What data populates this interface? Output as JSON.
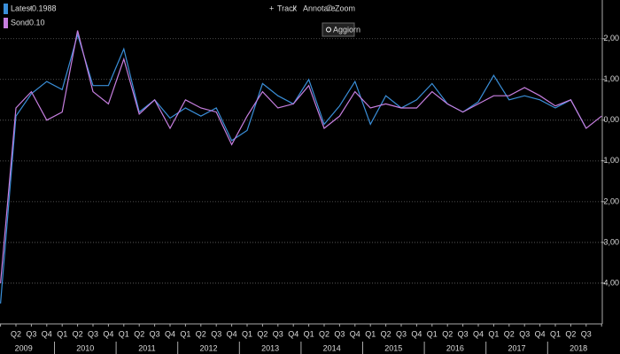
{
  "toolbar": {
    "items": [
      "Track",
      "Annotare",
      "Zoom"
    ],
    "button": "Aggiorn"
  },
  "chart_data": {
    "type": "line",
    "categories": [
      null,
      "Q2",
      "Q3",
      "Q4",
      "Q1",
      "Q2",
      "Q3",
      "Q4",
      "Q1",
      "Q2",
      "Q3",
      "Q4",
      "Q1",
      "Q2",
      "Q3",
      "Q4",
      "Q1",
      "Q2",
      "Q3",
      "Q4",
      "Q1",
      "Q2",
      "Q3",
      "Q4",
      "Q1",
      "Q2",
      "Q3",
      "Q4",
      "Q1",
      "Q2",
      "Q3",
      "Q4",
      "Q1",
      "Q2",
      "Q3",
      "Q4",
      "Q1",
      "Q2",
      "Q3",
      null
    ],
    "years": [
      "2009",
      "2010",
      "2011",
      "2012",
      "2013",
      "2014",
      "2015",
      "2016",
      "2017",
      "2018"
    ],
    "series": [
      {
        "name": "Latest",
        "legend_value": "-0.1988",
        "color": "#3a8fd9",
        "values": [
          -4.5,
          0.1,
          0.65,
          0.95,
          0.75,
          2.1,
          0.85,
          0.85,
          1.75,
          0.2,
          0.5,
          0.05,
          0.3,
          0.1,
          0.3,
          -0.5,
          -0.25,
          0.9,
          0.6,
          0.4,
          1.0,
          -0.1,
          0.35,
          0.95,
          -0.1,
          0.6,
          0.3,
          0.5,
          0.9,
          0.4,
          0.2,
          0.45,
          1.1,
          0.5,
          0.6,
          0.5,
          0.3,
          0.5,
          -0.2,
          null
        ]
      },
      {
        "name": "Sond",
        "legend_value": "0.10",
        "color": "#c77fe0",
        "values": [
          -4.0,
          0.3,
          0.7,
          0.0,
          0.2,
          2.2,
          0.7,
          0.4,
          1.5,
          0.15,
          0.5,
          -0.2,
          0.5,
          0.3,
          0.2,
          -0.6,
          0.1,
          0.7,
          0.3,
          0.4,
          0.85,
          -0.2,
          0.1,
          0.7,
          0.3,
          0.4,
          0.3,
          0.3,
          0.7,
          0.4,
          0.2,
          0.4,
          0.6,
          0.6,
          0.8,
          0.6,
          0.35,
          0.5,
          -0.2,
          0.1
        ]
      }
    ],
    "ylim": [
      -5,
      2.95
    ],
    "yticks": [
      {
        "value": 2,
        "label": "2,00"
      },
      {
        "value": 1,
        "label": "1,00"
      },
      {
        "value": 0,
        "label": "0,00"
      },
      {
        "value": -1,
        "label": "-1,00"
      },
      {
        "value": -2,
        "label": "-2,00"
      },
      {
        "value": -3,
        "label": "-3,00"
      },
      {
        "value": -4,
        "label": "-4,00"
      }
    ],
    "grid": true
  }
}
